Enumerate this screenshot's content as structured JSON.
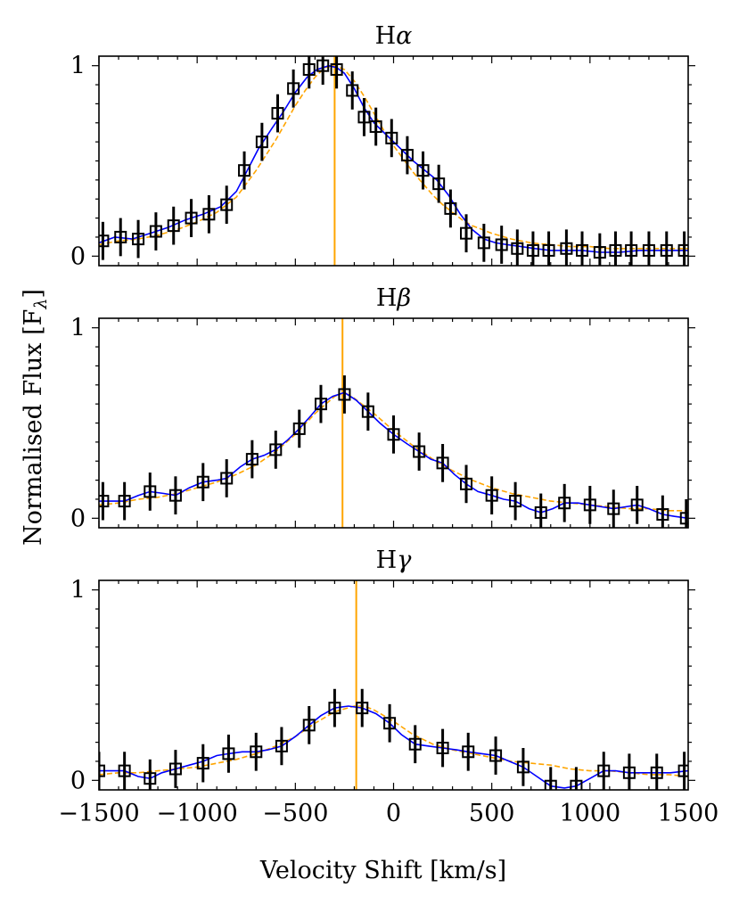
{
  "figure": {
    "ylabel": "Normalised Flux [F",
    "ylabel_sub": "λ",
    "ylabel_close": "]",
    "xlabel": "Velocity Shift [km/s]",
    "colors": {
      "data": "#000000",
      "model": "#0000ff",
      "fit": "#ffa500",
      "line": "#ffa500"
    }
  },
  "chart_data": [
    {
      "type": "line",
      "title": "Hα",
      "title_base": "H",
      "title_greek": "α",
      "xlim": [
        -1500,
        1500
      ],
      "ylim": [
        -0.05,
        1.05
      ],
      "yticks": [
        0,
        1
      ],
      "xticks": [
        -1500,
        -1000,
        -500,
        0,
        500,
        1000,
        1500
      ],
      "xtick_labels": [
        "−1500",
        "−1000",
        "−500",
        "0",
        "500",
        "1000",
        "1500"
      ],
      "ytick_labels": [
        "0",
        "1"
      ],
      "vline": -300,
      "data": {
        "x": [
          -1480,
          -1390,
          -1300,
          -1210,
          -1120,
          -1030,
          -940,
          -850,
          -760,
          -670,
          -590,
          -510,
          -430,
          -360,
          -290,
          -210,
          -150,
          -90,
          -10,
          70,
          150,
          230,
          290,
          370,
          460,
          550,
          630,
          710,
          790,
          880,
          960,
          1050,
          1130,
          1210,
          1300,
          1390,
          1480
        ],
        "y": [
          0.08,
          0.1,
          0.09,
          0.13,
          0.16,
          0.2,
          0.22,
          0.27,
          0.45,
          0.6,
          0.75,
          0.88,
          0.98,
          1.0,
          0.98,
          0.87,
          0.73,
          0.68,
          0.62,
          0.53,
          0.45,
          0.38,
          0.25,
          0.12,
          0.07,
          0.06,
          0.04,
          0.03,
          0.03,
          0.04,
          0.03,
          0.02,
          0.03,
          0.03,
          0.03,
          0.03,
          0.03
        ],
        "yerr": [
          0.1,
          0.1,
          0.1,
          0.1,
          0.1,
          0.1,
          0.1,
          0.1,
          0.1,
          0.1,
          0.1,
          0.1,
          0.1,
          0.1,
          0.1,
          0.1,
          0.1,
          0.1,
          0.1,
          0.1,
          0.1,
          0.1,
          0.1,
          0.1,
          0.1,
          0.1,
          0.1,
          0.1,
          0.1,
          0.1,
          0.1,
          0.1,
          0.1,
          0.1,
          0.1,
          0.1,
          0.1
        ]
      },
      "model": {
        "x": [
          -1500,
          -1420,
          -1330,
          -1240,
          -1150,
          -1060,
          -970,
          -880,
          -800,
          -740,
          -690,
          -620,
          -560,
          -500,
          -440,
          -390,
          -330,
          -290,
          -250,
          -200,
          -150,
          -100,
          -50,
          0,
          50,
          100,
          160,
          220,
          280,
          340,
          400,
          460,
          520,
          580,
          650,
          720,
          800,
          880,
          960,
          1050,
          1150,
          1250,
          1350,
          1450,
          1500
        ],
        "y": [
          0.07,
          0.1,
          0.09,
          0.12,
          0.15,
          0.19,
          0.22,
          0.26,
          0.34,
          0.46,
          0.56,
          0.67,
          0.76,
          0.86,
          0.94,
          0.98,
          1.0,
          0.99,
          0.96,
          0.88,
          0.78,
          0.7,
          0.65,
          0.6,
          0.55,
          0.5,
          0.45,
          0.4,
          0.32,
          0.22,
          0.14,
          0.09,
          0.07,
          0.06,
          0.05,
          0.04,
          0.03,
          0.03,
          0.03,
          0.02,
          0.02,
          0.03,
          0.03,
          0.03,
          0.03
        ]
      },
      "fit": {
        "x": [
          -1500,
          -1400,
          -1300,
          -1200,
          -1100,
          -1000,
          -900,
          -800,
          -700,
          -600,
          -500,
          -450,
          -400,
          -350,
          -300,
          -250,
          -200,
          -150,
          -100,
          -50,
          0,
          50,
          100,
          150,
          200,
          250,
          300,
          350,
          400,
          450,
          500,
          600,
          700,
          800,
          900,
          1000,
          1100,
          1200,
          1300,
          1400,
          1500
        ],
        "y": [
          0.06,
          0.08,
          0.09,
          0.11,
          0.14,
          0.18,
          0.23,
          0.31,
          0.45,
          0.61,
          0.79,
          0.87,
          0.94,
          0.99,
          1.0,
          0.98,
          0.92,
          0.84,
          0.75,
          0.66,
          0.58,
          0.51,
          0.44,
          0.38,
          0.32,
          0.27,
          0.23,
          0.19,
          0.16,
          0.14,
          0.12,
          0.09,
          0.07,
          0.06,
          0.05,
          0.05,
          0.04,
          0.04,
          0.04,
          0.04,
          0.04
        ]
      }
    },
    {
      "type": "line",
      "title": "Hβ",
      "title_base": "H",
      "title_greek": "β",
      "xlim": [
        -1500,
        1500
      ],
      "ylim": [
        -0.05,
        1.05
      ],
      "yticks": [
        0,
        1
      ],
      "xticks": [
        -1500,
        -1000,
        -500,
        0,
        500,
        1000,
        1500
      ],
      "xtick_labels": [
        "−1500",
        "−1000",
        "−500",
        "0",
        "500",
        "1000",
        "1500"
      ],
      "ytick_labels": [
        "0",
        "1"
      ],
      "vline": -260,
      "data": {
        "x": [
          -1480,
          -1370,
          -1240,
          -1110,
          -970,
          -850,
          -720,
          -600,
          -480,
          -370,
          -250,
          -130,
          0,
          130,
          250,
          370,
          500,
          620,
          750,
          870,
          1000,
          1120,
          1240,
          1370,
          1490
        ],
        "y": [
          0.09,
          0.09,
          0.14,
          0.12,
          0.19,
          0.21,
          0.31,
          0.36,
          0.47,
          0.6,
          0.65,
          0.56,
          0.44,
          0.35,
          0.29,
          0.18,
          0.12,
          0.09,
          0.03,
          0.08,
          0.07,
          0.05,
          0.07,
          0.02,
          0.0
        ],
        "yerr": [
          0.1,
          0.1,
          0.1,
          0.1,
          0.1,
          0.1,
          0.1,
          0.1,
          0.1,
          0.1,
          0.1,
          0.1,
          0.1,
          0.1,
          0.1,
          0.1,
          0.1,
          0.1,
          0.1,
          0.1,
          0.1,
          0.1,
          0.1,
          0.1,
          0.1
        ]
      },
      "model": {
        "x": [
          -1500,
          -1420,
          -1370,
          -1300,
          -1240,
          -1170,
          -1110,
          -1040,
          -970,
          -900,
          -850,
          -780,
          -720,
          -660,
          -600,
          -540,
          -480,
          -420,
          -370,
          -310,
          -250,
          -190,
          -130,
          -70,
          0,
          70,
          130,
          190,
          250,
          310,
          370,
          430,
          500,
          560,
          620,
          690,
          750,
          810,
          870,
          940,
          1000,
          1060,
          1120,
          1180,
          1240,
          1300,
          1370,
          1430,
          1500
        ],
        "y": [
          0.09,
          0.09,
          0.09,
          0.12,
          0.14,
          0.13,
          0.12,
          0.16,
          0.19,
          0.2,
          0.21,
          0.27,
          0.31,
          0.33,
          0.36,
          0.41,
          0.47,
          0.54,
          0.6,
          0.64,
          0.66,
          0.62,
          0.56,
          0.5,
          0.44,
          0.39,
          0.35,
          0.31,
          0.29,
          0.23,
          0.18,
          0.14,
          0.12,
          0.1,
          0.09,
          0.05,
          0.03,
          0.05,
          0.08,
          0.08,
          0.07,
          0.06,
          0.05,
          0.06,
          0.07,
          0.05,
          0.02,
          0.01,
          0.0
        ]
      },
      "fit": {
        "x": [
          -1500,
          -1400,
          -1300,
          -1200,
          -1100,
          -1000,
          -900,
          -800,
          -700,
          -600,
          -500,
          -400,
          -300,
          -250,
          -200,
          -100,
          0,
          100,
          200,
          300,
          400,
          500,
          600,
          700,
          800,
          900,
          1000,
          1100,
          1200,
          1300,
          1400,
          1500
        ],
        "y": [
          0.07,
          0.08,
          0.1,
          0.11,
          0.13,
          0.16,
          0.19,
          0.23,
          0.28,
          0.35,
          0.44,
          0.55,
          0.64,
          0.66,
          0.63,
          0.55,
          0.46,
          0.38,
          0.31,
          0.25,
          0.2,
          0.16,
          0.13,
          0.11,
          0.09,
          0.08,
          0.07,
          0.06,
          0.05,
          0.05,
          0.04,
          0.04
        ]
      }
    },
    {
      "type": "line",
      "title": "Hγ",
      "title_base": "H",
      "title_greek": "γ",
      "xlim": [
        -1500,
        1500
      ],
      "ylim": [
        -0.05,
        1.05
      ],
      "yticks": [
        0,
        1
      ],
      "xticks": [
        -1500,
        -1000,
        -500,
        0,
        500,
        1000,
        1500
      ],
      "xtick_labels": [
        "−1500",
        "−1000",
        "−500",
        "0",
        "500",
        "1000",
        "1500"
      ],
      "ytick_labels": [
        "0",
        "1"
      ],
      "vline": -190,
      "data": {
        "x": [
          -1500,
          -1370,
          -1240,
          -1110,
          -970,
          -840,
          -700,
          -570,
          -430,
          -300,
          -160,
          -20,
          110,
          250,
          380,
          520,
          660,
          800,
          930,
          1070,
          1200,
          1340,
          1480
        ],
        "y": [
          0.05,
          0.05,
          0.01,
          0.06,
          0.09,
          0.14,
          0.15,
          0.18,
          0.29,
          0.38,
          0.38,
          0.3,
          0.19,
          0.17,
          0.15,
          0.13,
          0.07,
          -0.03,
          -0.03,
          0.05,
          0.04,
          0.04,
          0.05
        ],
        "yerr": [
          0.1,
          0.1,
          0.1,
          0.1,
          0.1,
          0.1,
          0.1,
          0.1,
          0.1,
          0.1,
          0.1,
          0.1,
          0.1,
          0.1,
          0.1,
          0.1,
          0.1,
          0.1,
          0.1,
          0.1,
          0.1,
          0.1,
          0.1
        ]
      },
      "model": {
        "x": [
          -1500,
          -1440,
          -1370,
          -1300,
          -1240,
          -1180,
          -1110,
          -1040,
          -970,
          -900,
          -840,
          -770,
          -700,
          -640,
          -570,
          -500,
          -430,
          -370,
          -300,
          -230,
          -160,
          -90,
          -20,
          40,
          110,
          180,
          250,
          320,
          380,
          450,
          520,
          590,
          660,
          730,
          800,
          870,
          930,
          1000,
          1070,
          1130,
          1200,
          1270,
          1340,
          1410,
          1500
        ],
        "y": [
          0.05,
          0.05,
          0.05,
          0.02,
          0.01,
          0.04,
          0.06,
          0.08,
          0.1,
          0.13,
          0.14,
          0.15,
          0.15,
          0.16,
          0.18,
          0.23,
          0.29,
          0.34,
          0.38,
          0.39,
          0.38,
          0.35,
          0.3,
          0.24,
          0.19,
          0.18,
          0.17,
          0.16,
          0.15,
          0.14,
          0.13,
          0.1,
          0.07,
          0.02,
          -0.03,
          -0.04,
          -0.03,
          0.01,
          0.05,
          0.05,
          0.04,
          0.04,
          0.04,
          0.04,
          0.05
        ]
      },
      "fit": {
        "x": [
          -1500,
          -1400,
          -1300,
          -1200,
          -1100,
          -1000,
          -900,
          -800,
          -700,
          -600,
          -500,
          -400,
          -300,
          -200,
          -150,
          -100,
          0,
          100,
          200,
          300,
          400,
          500,
          600,
          700,
          800,
          900,
          1000,
          1100,
          1200,
          1300,
          1400,
          1500
        ],
        "y": [
          0.03,
          0.04,
          0.04,
          0.05,
          0.06,
          0.07,
          0.09,
          0.11,
          0.14,
          0.18,
          0.23,
          0.3,
          0.36,
          0.39,
          0.39,
          0.37,
          0.31,
          0.24,
          0.19,
          0.16,
          0.14,
          0.12,
          0.1,
          0.09,
          0.08,
          0.06,
          0.05,
          0.05,
          0.04,
          0.03,
          0.03,
          0.02
        ]
      }
    }
  ]
}
